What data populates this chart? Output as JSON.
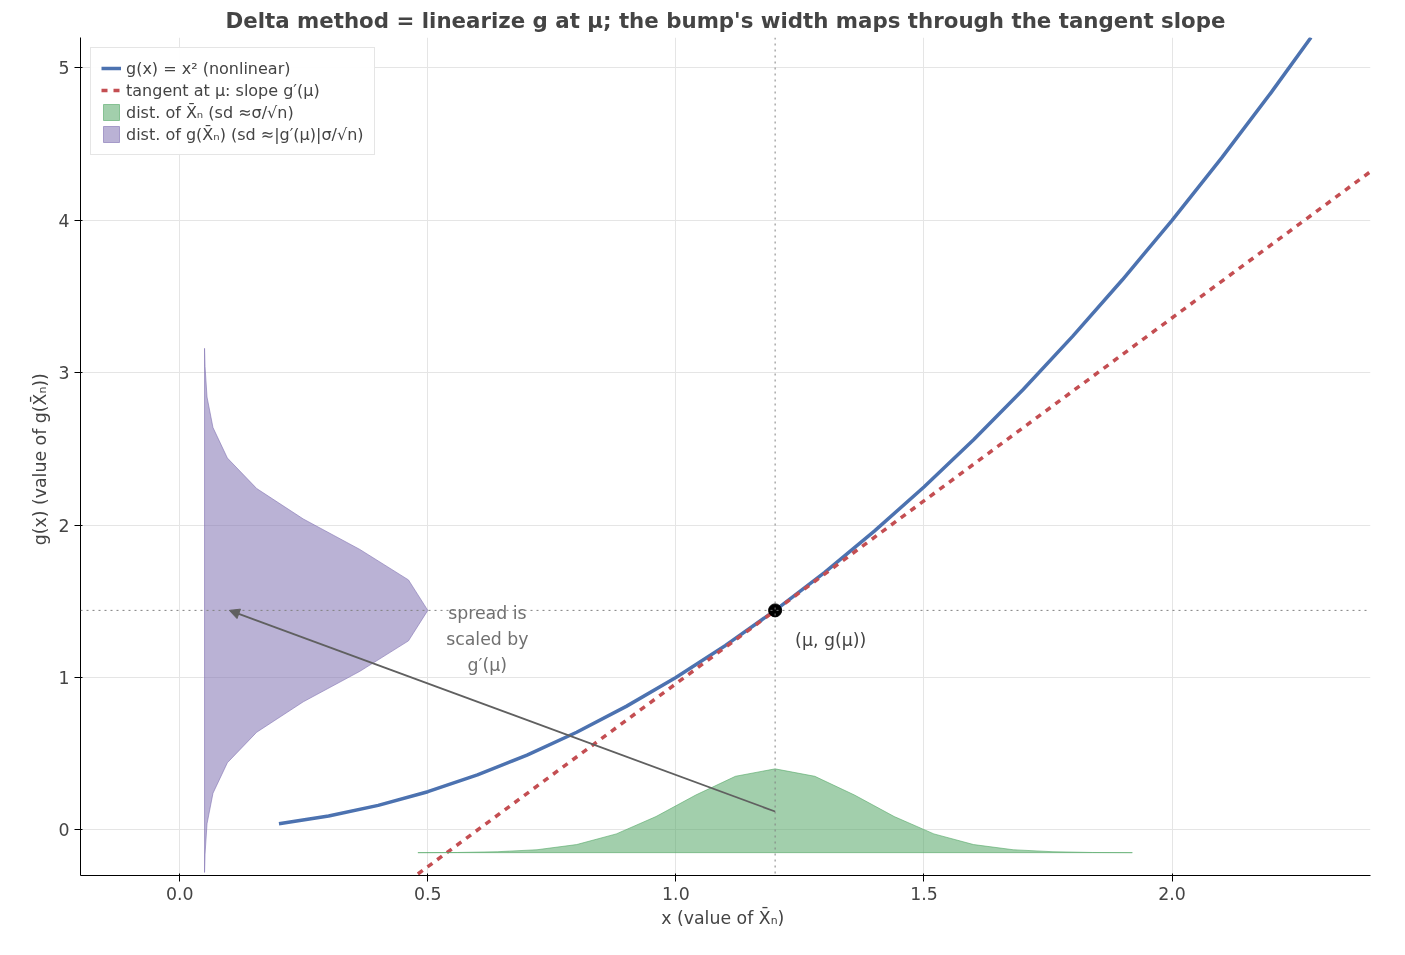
{
  "chart_data": {
    "type": "line",
    "title": "Delta method = linearize g at μ; the bump's width maps through the tangent slope",
    "xlabel": "x  (value of X̄ₙ)",
    "ylabel": "g(x)  (value of g(X̄ₙ))",
    "xlim": [
      -0.2,
      2.4
    ],
    "ylim": [
      -0.3,
      5.2
    ],
    "xticks": [
      {
        "value": 0,
        "label": "0.0"
      },
      {
        "value": 0.5,
        "label": "0.5"
      },
      {
        "value": 1,
        "label": "1.0"
      },
      {
        "value": 1.5,
        "label": "1.5"
      },
      {
        "value": 2,
        "label": "2.0"
      }
    ],
    "yticks": [
      0,
      1,
      2,
      3,
      4,
      5
    ],
    "grid": true,
    "legend": "top left",
    "series": [
      {
        "name": "g(x) = x² (nonlinear)",
        "color": "#4c72b0",
        "line_style": "solid",
        "x": [
          0.2,
          0.3,
          0.4,
          0.5,
          0.6,
          0.7,
          0.8,
          0.9,
          1.0,
          1.1,
          1.2,
          1.3,
          1.4,
          1.5,
          1.6,
          1.7,
          1.8,
          1.9,
          2.0,
          2.1,
          2.2,
          2.28
        ],
        "values": [
          0.04,
          0.09,
          0.16,
          0.25,
          0.36,
          0.49,
          0.64,
          0.81,
          1.0,
          1.21,
          1.44,
          1.69,
          1.96,
          2.25,
          2.56,
          2.89,
          3.24,
          3.61,
          4.0,
          4.41,
          4.84,
          5.2
        ]
      },
      {
        "name": "tangent at μ: slope g′(μ)",
        "color": "#c44e52",
        "line_style": "dashed",
        "x": [
          0.48,
          2.4
        ],
        "values": [
          -0.29,
          4.32
        ]
      },
      {
        "type": "area",
        "name": "dist. of X̄ₙ (sd ≈σ/√n)",
        "color": "#55a868",
        "x": [
          0.48,
          0.56,
          0.64,
          0.72,
          0.8,
          0.88,
          0.96,
          1.04,
          1.12,
          1.2,
          1.28,
          1.36,
          1.44,
          1.52,
          1.6,
          1.68,
          1.76,
          1.84,
          1.92
        ],
        "values": [
          -0.15,
          -0.149,
          -0.144,
          -0.131,
          -0.097,
          -0.027,
          0.087,
          0.228,
          0.351,
          0.4,
          0.351,
          0.228,
          0.087,
          -0.027,
          -0.097,
          -0.131,
          -0.144,
          -0.149,
          -0.15
        ]
      },
      {
        "type": "area",
        "name": "dist. of g(X̄ₙ) (sd ≈|g′(μ)|σ/√n)",
        "color": "#8172b2",
        "x": [
          0.05,
          0.051,
          0.055,
          0.067,
          0.096,
          0.155,
          0.249,
          0.363,
          0.461,
          0.5,
          0.461,
          0.363,
          0.249,
          0.155,
          0.096,
          0.067,
          0.055,
          0.051,
          0.05
        ],
        "values": [
          -0.28,
          -0.16,
          0.04,
          0.24,
          0.44,
          0.64,
          0.84,
          1.04,
          1.24,
          1.44,
          1.64,
          1.84,
          2.04,
          2.24,
          2.44,
          2.64,
          2.84,
          3.04,
          3.16
        ]
      },
      {
        "type": "scatter",
        "color": "#000000",
        "marker": "circle",
        "x": [
          1.2
        ],
        "values": [
          1.44
        ]
      }
    ],
    "ref_lines": [
      {
        "axis": "x",
        "value": 1.2,
        "color": "#808080",
        "line_style": "dotted"
      },
      {
        "axis": "y",
        "value": 1.44,
        "color": "#808080",
        "line_style": "dotted"
      }
    ],
    "annotations": [
      {
        "text": "(μ,  g(μ))",
        "x": 1.2,
        "y": 1.44
      },
      "spread is\nscaled by\ng′(μ)"
    ]
  }
}
